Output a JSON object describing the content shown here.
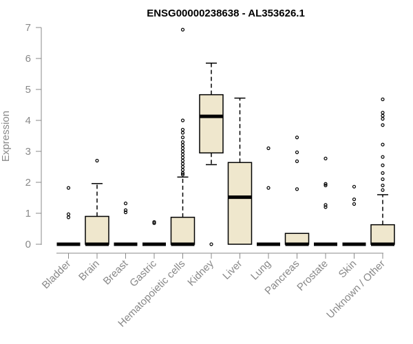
{
  "chart_data": {
    "type": "box",
    "title": "ENSG00000238638 - AL353626.1",
    "xlabel": "",
    "ylabel": "Expression",
    "ylim": [
      0,
      7
    ],
    "yticks": [
      0,
      1,
      2,
      3,
      4,
      5,
      6,
      7
    ],
    "categories": [
      "Bladder",
      "Brain",
      "Breast",
      "Gastric",
      "Hematopoietic cells",
      "Kidney",
      "Liver",
      "Lung",
      "Pancreas",
      "Prostate",
      "Skin",
      "Unknown / Other"
    ],
    "boxes": [
      {
        "category": "Bladder",
        "q1": 0,
        "median": 0,
        "q3": 0,
        "whisker_low": 0,
        "whisker_high": 0,
        "outliers": [
          1.82,
          0.97,
          0.87
        ]
      },
      {
        "category": "Brain",
        "q1": 0,
        "median": 0,
        "q3": 0.9,
        "whisker_low": 0,
        "whisker_high": 1.96,
        "outliers": [
          2.7
        ]
      },
      {
        "category": "Breast",
        "q1": 0,
        "median": 0,
        "q3": 0,
        "whisker_low": 0,
        "whisker_high": 0,
        "outliers": [
          1.32,
          1.1,
          1.03
        ]
      },
      {
        "category": "Gastric",
        "q1": 0,
        "median": 0,
        "q3": 0,
        "whisker_low": 0,
        "whisker_high": 0,
        "outliers": [
          0.72,
          0.68
        ]
      },
      {
        "category": "Hematopoietic cells",
        "q1": 0,
        "median": 0,
        "q3": 0.87,
        "whisker_low": 0,
        "whisker_high": 2.17,
        "outliers": [
          6.93,
          4.0,
          3.7,
          3.6,
          3.45,
          3.3,
          3.2,
          3.1,
          3.0,
          2.9,
          2.8,
          2.7,
          2.6,
          2.5,
          2.4,
          2.3,
          2.25
        ]
      },
      {
        "category": "Kidney",
        "q1": 2.95,
        "median": 4.13,
        "q3": 4.83,
        "whisker_low": 2.57,
        "whisker_high": 5.85,
        "outliers": [
          0
        ]
      },
      {
        "category": "Liver",
        "q1": 0,
        "median": 1.52,
        "q3": 2.64,
        "whisker_low": 0,
        "whisker_high": 4.72,
        "outliers": []
      },
      {
        "category": "Lung",
        "q1": 0,
        "median": 0,
        "q3": 0,
        "whisker_low": 0,
        "whisker_high": 0,
        "outliers": [
          3.1,
          1.82
        ]
      },
      {
        "category": "Pancreas",
        "q1": 0,
        "median": 0,
        "q3": 0.35,
        "whisker_low": 0,
        "whisker_high": 0.35,
        "outliers": [
          3.45,
          2.97,
          2.68,
          1.78
        ]
      },
      {
        "category": "Prostate",
        "q1": 0,
        "median": 0,
        "q3": 0,
        "whisker_low": 0,
        "whisker_high": 0,
        "outliers": [
          2.77,
          1.95,
          1.9,
          1.27,
          1.2
        ]
      },
      {
        "category": "Skin",
        "q1": 0,
        "median": 0,
        "q3": 0,
        "whisker_low": 0,
        "whisker_high": 0,
        "outliers": [
          1.86,
          1.45,
          1.3
        ]
      },
      {
        "category": "Unknown / Other",
        "q1": 0,
        "median": 0,
        "q3": 0.63,
        "whisker_low": 0,
        "whisker_high": 1.6,
        "outliers": [
          4.68,
          4.25,
          4.15,
          4.05,
          3.85,
          3.22,
          2.82,
          2.55,
          2.3,
          2.1,
          1.9,
          1.75
        ]
      }
    ],
    "grid": false,
    "legend": "none",
    "box_fill": "#efe7cd",
    "box_stroke": "#000000",
    "axis_color": "#888888"
  }
}
